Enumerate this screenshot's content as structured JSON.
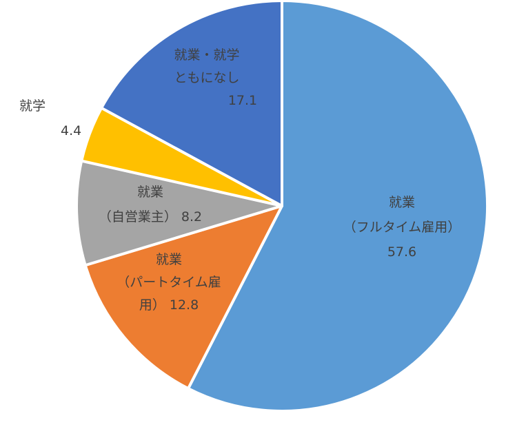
{
  "chart_data": {
    "type": "pie",
    "title": "",
    "slices": [
      {
        "label_lines": [
          "就業",
          "（フルタイム雇用）"
        ],
        "value": 57.6,
        "value_text": "57.6",
        "color": "#5B9BD5"
      },
      {
        "label_lines": [
          "就業",
          "（パートタイム雇",
          "用）"
        ],
        "value": 12.8,
        "value_text": "12.8",
        "color": "#ED7D31"
      },
      {
        "label_lines": [
          "就業",
          "（自営業主）"
        ],
        "value": 8.2,
        "value_text": "8.2",
        "color": "#A5A5A5"
      },
      {
        "label_lines": [
          "就学"
        ],
        "value": 4.4,
        "value_text": "4.4",
        "color": "#FFC000"
      },
      {
        "label_lines": [
          "就業・就学",
          "ともになし"
        ],
        "value": 17.1,
        "value_text": "17.1",
        "color": "#4472C4"
      }
    ],
    "start_angle": "12 o'clock",
    "direction": "clockwise",
    "legend": "none"
  }
}
